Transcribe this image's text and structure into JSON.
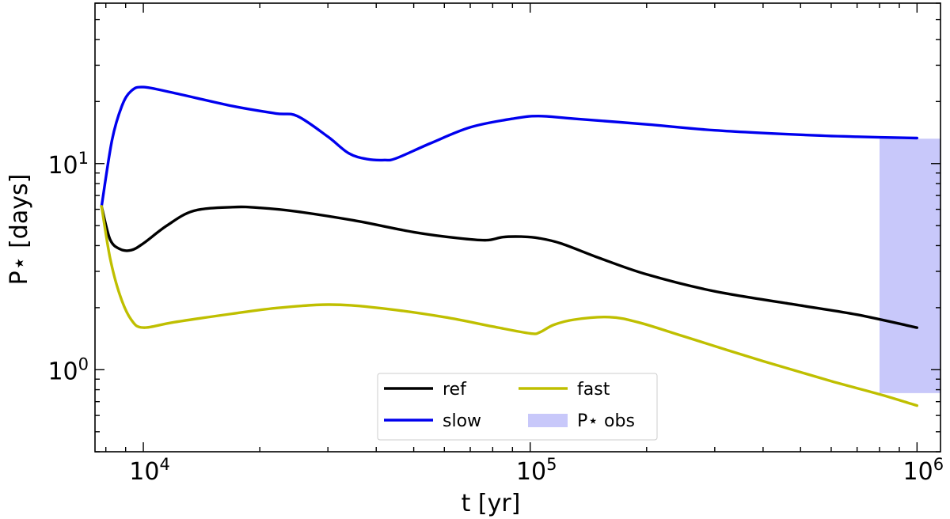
{
  "chart_data": {
    "type": "line",
    "xlabel": "t [yr]",
    "ylabel": "P⋆ [days]",
    "xscale": "log",
    "yscale": "log",
    "xlim": [
      7500,
      1150000
    ],
    "ylim": [
      0.4,
      60
    ],
    "x_ticks": [
      {
        "value": 10000,
        "base": "10",
        "exp": "4"
      },
      {
        "value": 100000,
        "base": "10",
        "exp": "5"
      },
      {
        "value": 1000000,
        "base": "10",
        "exp": "6"
      }
    ],
    "y_ticks": [
      {
        "value": 1,
        "base": "10",
        "exp": "0"
      },
      {
        "value": 10,
        "base": "10",
        "exp": "1"
      }
    ],
    "legend": {
      "position": "bottom-center",
      "columns": 2,
      "entries": [
        {
          "label": "ref",
          "kind": "line",
          "color": "#000000"
        },
        {
          "label": "fast",
          "kind": "line",
          "color": "#bfbf00"
        },
        {
          "label": "slow",
          "kind": "line",
          "color": "#0000ee"
        },
        {
          "label": "P⋆ obs",
          "kind": "patch",
          "color": "#c8c8fa"
        }
      ]
    },
    "band": {
      "label": "P⋆ obs",
      "x": [
        800000,
        1150000
      ],
      "y": [
        0.77,
        13.2
      ],
      "color": "#c8c8fa"
    },
    "series": [
      {
        "name": "ref",
        "color": "#000000",
        "x": [
          7800,
          8200,
          8700,
          9300,
          10000,
          11500,
          13500,
          17000,
          20000,
          25000,
          35000,
          50000,
          65000,
          77000,
          85000,
          95000,
          105000,
          120000,
          150000,
          200000,
          300000,
          500000,
          700000,
          1000000
        ],
        "y": [
          6.2,
          4.3,
          3.85,
          3.8,
          4.1,
          5.0,
          5.9,
          6.15,
          6.1,
          5.85,
          5.3,
          4.65,
          4.35,
          4.25,
          4.4,
          4.42,
          4.35,
          4.1,
          3.5,
          2.9,
          2.4,
          2.05,
          1.85,
          1.6
        ]
      },
      {
        "name": "slow",
        "color": "#0000ee",
        "x": [
          7800,
          8300,
          8800,
          9300,
          10000,
          12000,
          17000,
          22000,
          25000,
          30000,
          34000,
          38000,
          42000,
          45000,
          55000,
          70000,
          90000,
          105000,
          130000,
          200000,
          300000,
          500000,
          700000,
          1000000
        ],
        "y": [
          6.2,
          13,
          19,
          22.5,
          23.5,
          22,
          19,
          17.5,
          17,
          13.5,
          11.2,
          10.5,
          10.4,
          10.6,
          12.5,
          15,
          16.5,
          17,
          16.5,
          15.5,
          14.5,
          13.8,
          13.5,
          13.3
        ]
      },
      {
        "name": "fast",
        "color": "#bfbf00",
        "x": [
          7800,
          8200,
          8700,
          9300,
          10000,
          12000,
          17000,
          22000,
          30000,
          40000,
          60000,
          80000,
          100000,
          106000,
          115000,
          130000,
          160000,
          190000,
          250000,
          400000,
          600000,
          800000,
          1000000
        ],
        "y": [
          6.2,
          3.5,
          2.3,
          1.75,
          1.6,
          1.7,
          1.87,
          1.99,
          2.07,
          2.0,
          1.8,
          1.62,
          1.5,
          1.52,
          1.65,
          1.75,
          1.8,
          1.7,
          1.45,
          1.1,
          0.88,
          0.76,
          0.67
        ]
      }
    ]
  }
}
